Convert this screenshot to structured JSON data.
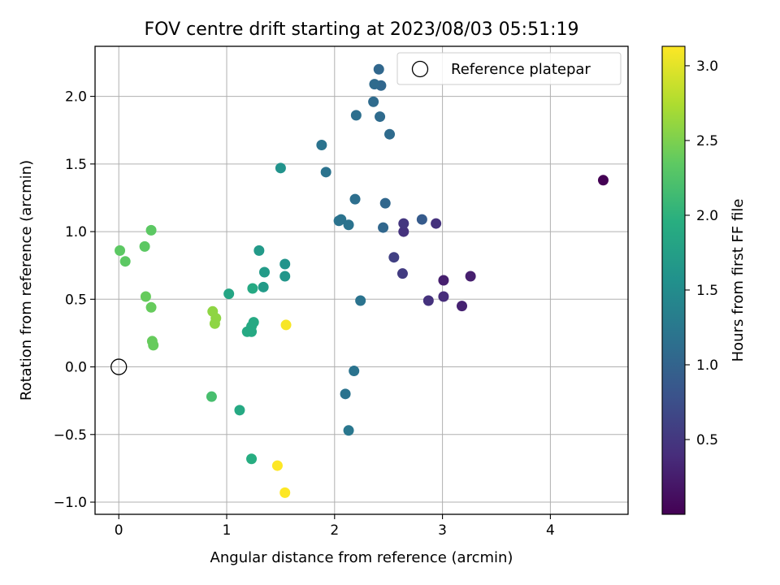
{
  "chart_data": {
    "type": "scatter",
    "title": "FOV centre drift starting at 2023/08/03 05:51:19",
    "xlabel": "Angular distance from reference (arcmin)",
    "ylabel": "Rotation from reference (arcmin)",
    "xlim": [
      -0.22,
      4.72
    ],
    "ylim": [
      -1.09,
      2.37
    ],
    "xticks": [
      0,
      1,
      2,
      3,
      4
    ],
    "xtick_labels": [
      "0",
      "1",
      "2",
      "3",
      "4"
    ],
    "yticks": [
      -1.0,
      -0.5,
      0.0,
      0.5,
      1.0,
      1.5,
      2.0
    ],
    "ytick_labels": [
      "−1.0",
      "−0.5",
      "0.0",
      "0.5",
      "1.0",
      "1.5",
      "2.0"
    ],
    "grid": true,
    "legend": {
      "position": "top-right",
      "entries": [
        "Reference platepar"
      ]
    },
    "reference_point": {
      "name": "Reference platepar",
      "x": 0.0,
      "y": 0.0
    },
    "colorbar": {
      "label": "Hours from first FF file",
      "colormap": "viridis",
      "range": [
        0.0,
        3.13
      ],
      "ticks": [
        0.5,
        1.0,
        1.5,
        2.0,
        2.5,
        3.0
      ],
      "tick_labels": [
        "0.5",
        "1.0",
        "1.5",
        "2.0",
        "2.5",
        "3.0"
      ]
    },
    "points": [
      {
        "x": 4.49,
        "y": 1.38,
        "h": 0.0
      },
      {
        "x": 3.26,
        "y": 0.67,
        "h": 0.27
      },
      {
        "x": 3.01,
        "y": 0.64,
        "h": 0.27
      },
      {
        "x": 3.18,
        "y": 0.45,
        "h": 0.3
      },
      {
        "x": 3.01,
        "y": 0.52,
        "h": 0.4
      },
      {
        "x": 2.87,
        "y": 0.49,
        "h": 0.45
      },
      {
        "x": 2.94,
        "y": 1.06,
        "h": 0.45
      },
      {
        "x": 2.64,
        "y": 1.0,
        "h": 0.45
      },
      {
        "x": 2.64,
        "y": 1.06,
        "h": 0.5
      },
      {
        "x": 2.63,
        "y": 0.69,
        "h": 0.55
      },
      {
        "x": 2.55,
        "y": 0.81,
        "h": 0.6
      },
      {
        "x": 2.81,
        "y": 1.09,
        "h": 0.9
      },
      {
        "x": 2.47,
        "y": 1.21,
        "h": 1.05
      },
      {
        "x": 2.45,
        "y": 1.03,
        "h": 1.05
      },
      {
        "x": 2.43,
        "y": 2.08,
        "h": 1.05
      },
      {
        "x": 2.41,
        "y": 2.2,
        "h": 1.05
      },
      {
        "x": 2.37,
        "y": 2.09,
        "h": 1.1
      },
      {
        "x": 2.42,
        "y": 1.85,
        "h": 1.1
      },
      {
        "x": 2.51,
        "y": 1.72,
        "h": 1.1
      },
      {
        "x": 2.36,
        "y": 1.96,
        "h": 1.1
      },
      {
        "x": 2.2,
        "y": 1.86,
        "h": 1.15
      },
      {
        "x": 2.19,
        "y": 1.24,
        "h": 1.15
      },
      {
        "x": 2.24,
        "y": 0.49,
        "h": 1.2
      },
      {
        "x": 1.88,
        "y": 1.64,
        "h": 1.2
      },
      {
        "x": 1.92,
        "y": 1.44,
        "h": 1.2
      },
      {
        "x": 2.06,
        "y": 1.09,
        "h": 1.2
      },
      {
        "x": 2.04,
        "y": 1.08,
        "h": 1.2
      },
      {
        "x": 2.13,
        "y": 1.05,
        "h": 1.2
      },
      {
        "x": 2.18,
        "y": -0.03,
        "h": 1.2
      },
      {
        "x": 2.1,
        "y": -0.2,
        "h": 1.2
      },
      {
        "x": 2.13,
        "y": -0.47,
        "h": 1.25
      },
      {
        "x": 1.5,
        "y": 1.47,
        "h": 1.6
      },
      {
        "x": 1.54,
        "y": 0.76,
        "h": 1.62
      },
      {
        "x": 1.54,
        "y": 0.67,
        "h": 1.65
      },
      {
        "x": 1.3,
        "y": 0.86,
        "h": 1.7
      },
      {
        "x": 1.35,
        "y": 0.7,
        "h": 1.72
      },
      {
        "x": 1.34,
        "y": 0.59,
        "h": 1.72
      },
      {
        "x": 1.24,
        "y": 0.58,
        "h": 1.9
      },
      {
        "x": 1.02,
        "y": 0.54,
        "h": 1.85
      },
      {
        "x": 1.25,
        "y": 0.33,
        "h": 1.9
      },
      {
        "x": 1.23,
        "y": 0.3,
        "h": 1.9
      },
      {
        "x": 1.19,
        "y": 0.26,
        "h": 1.9
      },
      {
        "x": 1.23,
        "y": 0.26,
        "h": 1.9
      },
      {
        "x": 1.12,
        "y": -0.32,
        "h": 1.9
      },
      {
        "x": 1.23,
        "y": -0.68,
        "h": 1.95
      },
      {
        "x": 0.86,
        "y": -0.22,
        "h": 2.2
      },
      {
        "x": 0.01,
        "y": 0.86,
        "h": 2.35
      },
      {
        "x": 0.06,
        "y": 0.78,
        "h": 2.35
      },
      {
        "x": 0.24,
        "y": 0.89,
        "h": 2.35
      },
      {
        "x": 0.3,
        "y": 1.01,
        "h": 2.35
      },
      {
        "x": 0.25,
        "y": 0.52,
        "h": 2.4
      },
      {
        "x": 0.3,
        "y": 0.44,
        "h": 2.4
      },
      {
        "x": 0.31,
        "y": 0.19,
        "h": 2.4
      },
      {
        "x": 0.32,
        "y": 0.16,
        "h": 2.4
      },
      {
        "x": 0.87,
        "y": 0.41,
        "h": 2.6
      },
      {
        "x": 0.9,
        "y": 0.36,
        "h": 2.6
      },
      {
        "x": 0.89,
        "y": 0.32,
        "h": 2.6
      },
      {
        "x": 1.55,
        "y": 0.31,
        "h": 3.1
      },
      {
        "x": 1.47,
        "y": -0.73,
        "h": 3.13
      },
      {
        "x": 1.54,
        "y": -0.93,
        "h": 3.13
      }
    ]
  }
}
